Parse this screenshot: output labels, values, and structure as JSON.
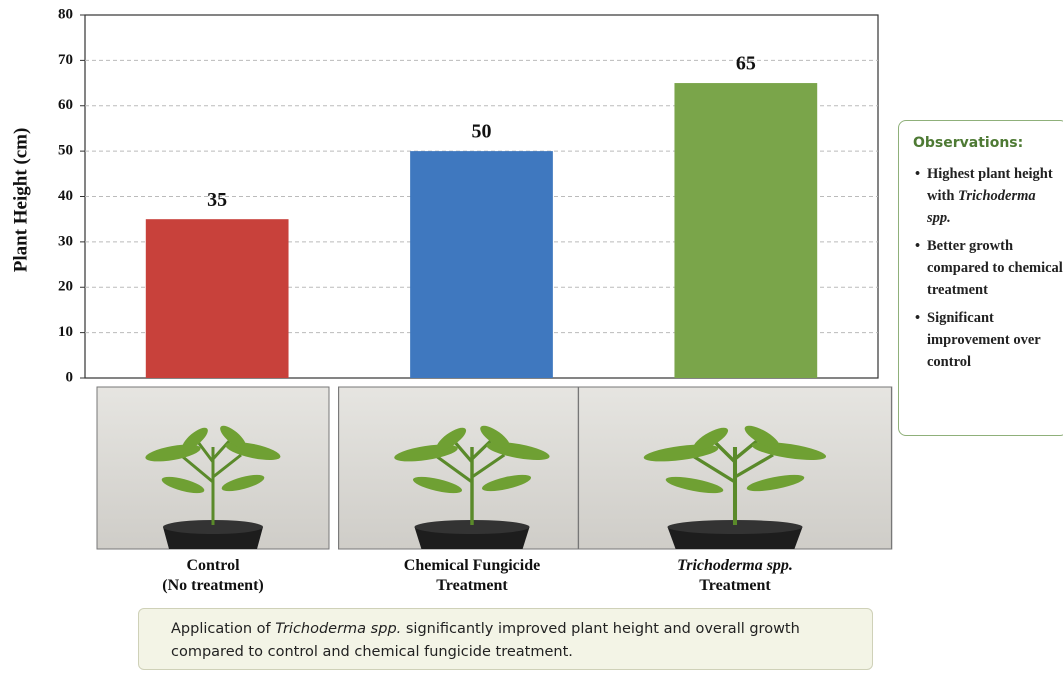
{
  "chart_data": {
    "type": "bar",
    "y_label": "Plant Height (cm)",
    "categories": [
      "Control\n(No treatment)",
      "Chemical Fungicide\nTreatment",
      "Trichoderma spp.\nTreatment"
    ],
    "values": [
      35,
      50,
      65
    ],
    "colors": [
      "#c8413b",
      "#3f78bf",
      "#7aa54a"
    ],
    "ylim": [
      0,
      80
    ],
    "yticks": [
      0,
      10,
      20,
      30,
      40,
      50,
      60,
      70,
      80
    ],
    "grid": true
  },
  "observations": {
    "title": "Observations:",
    "bullets": [
      [
        "Highest plant height with ",
        "Trichoderma spp."
      ],
      [
        "Better growth compared to chemical treatment"
      ],
      [
        "Significant improvement over control"
      ]
    ]
  },
  "caption": [
    "Application of ",
    "Trichoderma spp.",
    " significantly improved plant height and overall growth compared to control and chemical fungicide treatment."
  ]
}
